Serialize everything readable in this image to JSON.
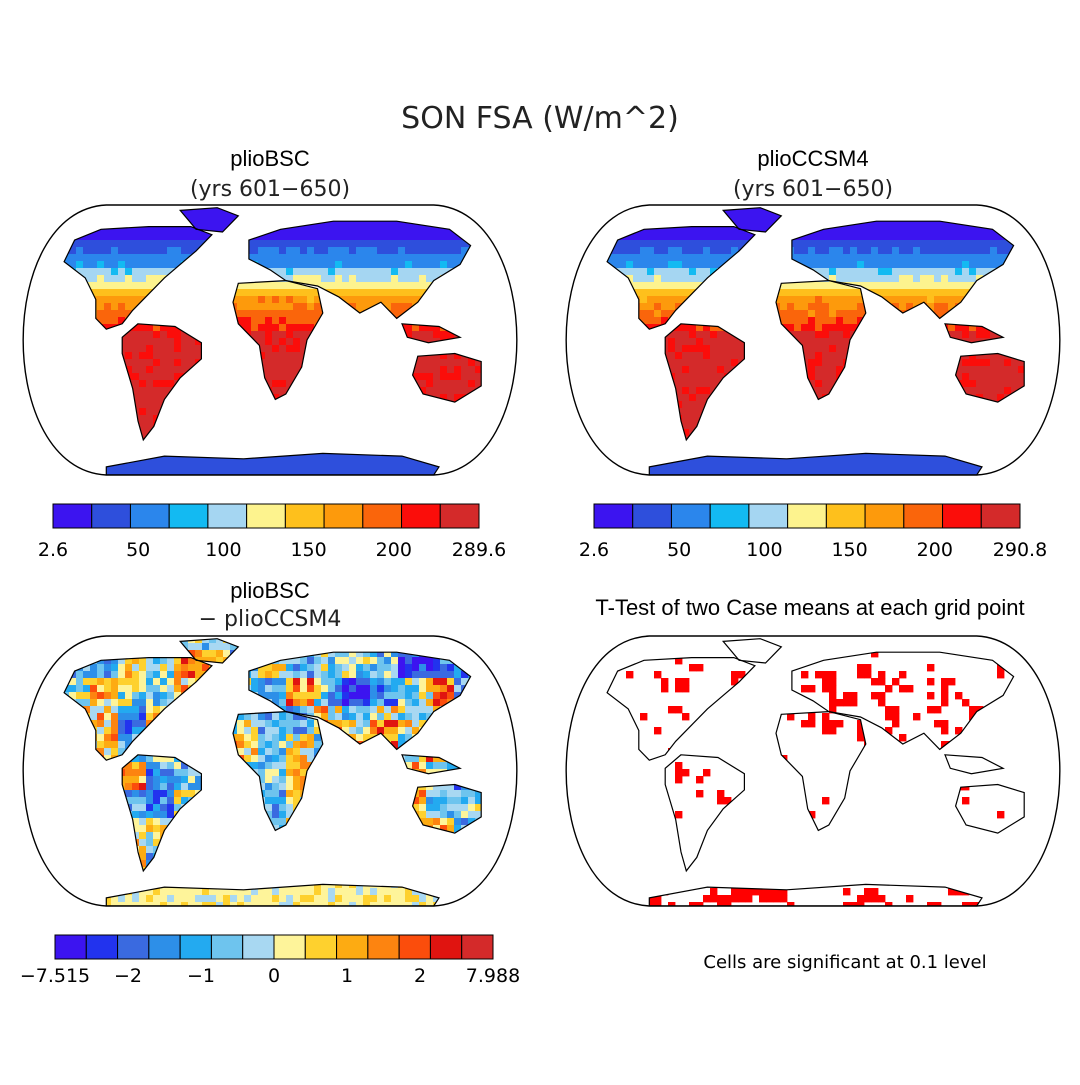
{
  "figure": {
    "title": "SON FSA (W/m^2)",
    "footnote": "Cells are significant at 0.1 level"
  },
  "panels": [
    {
      "id": "pliobsc",
      "title": "plioBSC",
      "subtitle": "(yrs 601−650)",
      "field": "absolute",
      "colorbar": {
        "colors": [
          "#3c14f0",
          "#2e4fdc",
          "#2b86ec",
          "#13baf2",
          "#a5d6f2",
          "#fdf38e",
          "#fec01c",
          "#fd9a0c",
          "#fa650b",
          "#fb0d0a",
          "#d42a2a"
        ],
        "labels": [
          "2.6",
          "50",
          "100",
          "150",
          "200",
          "289.6"
        ]
      }
    },
    {
      "id": "plioccsm4",
      "title": "plioCCSM4",
      "subtitle": "(yrs 601−650)",
      "field": "absolute",
      "colorbar": {
        "colors": [
          "#3c14f0",
          "#2e4fdc",
          "#2b86ec",
          "#13baf2",
          "#a5d6f2",
          "#fdf38e",
          "#fec01c",
          "#fd9a0c",
          "#fa650b",
          "#fb0d0a",
          "#d42a2a"
        ],
        "labels": [
          "2.6",
          "50",
          "100",
          "150",
          "200",
          "290.8"
        ]
      }
    },
    {
      "id": "difference",
      "title": "plioBSC",
      "subtitle": "− plioCCSM4",
      "field": "difference",
      "colorbar": {
        "colors": [
          "#3c14f0",
          "#2233ee",
          "#3a6ae0",
          "#2d8fe8",
          "#23aaf0",
          "#6ec4ee",
          "#a8d8f2",
          "#fef49a",
          "#fed12e",
          "#fdab12",
          "#fd8410",
          "#fb4d0c",
          "#e01410",
          "#d42a2a"
        ],
        "labels": [
          "−7.515",
          "−2",
          "−1",
          "0",
          "1",
          "2",
          "7.988"
        ]
      }
    },
    {
      "id": "ttest",
      "title": "T-Test of two Case means at each grid point",
      "subtitle": "",
      "field": "significance",
      "significant_color": "#ff0000"
    }
  ],
  "style": {
    "land_line": "#000000",
    "ocean": "#ffffff"
  }
}
